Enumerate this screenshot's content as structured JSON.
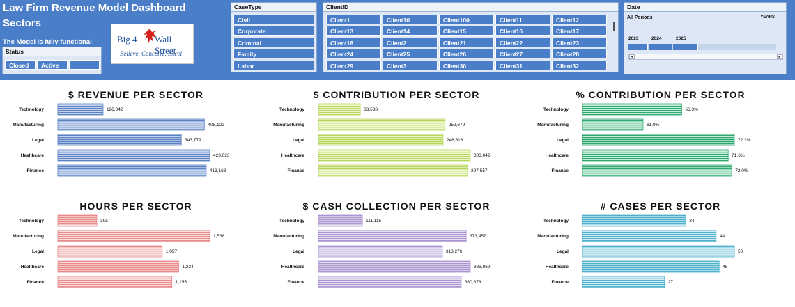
{
  "header": {
    "title_line1": "Law Firm Revenue Model Dashboard",
    "title_line2": "Sectors",
    "functional_note": "The Model is fully functional",
    "background": "#4a7ec8"
  },
  "logo": {
    "left_text": "Big 4",
    "right_text": "Wall Street",
    "tagline": "Believe, Conceive, Excel"
  },
  "status_slicer": {
    "title": "Status",
    "items": [
      "Closed",
      "Active",
      ""
    ]
  },
  "casetype_slicer": {
    "title": "CaseType",
    "items": [
      "Civil",
      "Corporate",
      "Criminal",
      "Family",
      "Labor"
    ]
  },
  "client_slicer": {
    "title": "ClientID",
    "rows": [
      [
        "Client1",
        "Client10",
        "Client100",
        "Client11",
        "Client12"
      ],
      [
        "Client13",
        "Client14",
        "Client15",
        "Client16",
        "Client17"
      ],
      [
        "Client18",
        "Client2",
        "Client21",
        "Client22",
        "Client23"
      ],
      [
        "Client24",
        "Client25",
        "Client26",
        "Client27",
        "Client28"
      ],
      [
        "Client29",
        "Client3",
        "Client30",
        "Client31",
        "Client32"
      ]
    ]
  },
  "date_slicer": {
    "title": "Date",
    "all_periods": "All Periods",
    "unit": "YEARS",
    "years": [
      "2023",
      "2024",
      "2025"
    ]
  },
  "charts": [
    {
      "title": "$ REVENUE PER SECTOR",
      "chart_data": {
        "type": "bar",
        "orientation": "horizontal",
        "categories": [
          "Technology",
          "Manufacturing",
          "Legal",
          "Healthcare",
          "Finance"
        ],
        "values": [
          126042,
          408122,
          343779,
          423023,
          413168
        ],
        "labels": [
          "126,042",
          "408,122",
          "343,779",
          "423,023",
          "413,168"
        ],
        "xlim": [
          0,
          423023
        ]
      },
      "color": "#5b82c2",
      "fill": "#c7d6ee"
    },
    {
      "title": "$ CONTRIBUTION PER SECTOR",
      "chart_data": {
        "type": "bar",
        "orientation": "horizontal",
        "categories": [
          "Technology",
          "Manufacturing",
          "Legal",
          "Healthcare",
          "Finance"
        ],
        "values": [
          83538,
          252679,
          248618,
          303042,
          297557
        ],
        "labels": [
          "83,538",
          "252,679",
          "248,618",
          "303,042",
          "297,557"
        ],
        "xlim": [
          0,
          303042
        ]
      },
      "color": "#b5d65a",
      "fill": "#eef7cf"
    },
    {
      "title": "% CONTRIBUTION PER SECTOR",
      "chart_data": {
        "type": "bar",
        "orientation": "horizontal",
        "categories": [
          "Technology",
          "Manufacturing",
          "Legal",
          "Healthcare",
          "Finance"
        ],
        "values": [
          66.3,
          61.9,
          72.3,
          71.6,
          72.0
        ],
        "labels": [
          "66.3%",
          "61.9%",
          "72.3%",
          "71.6%",
          "72.0%"
        ],
        "xlim": [
          55,
          72.3
        ]
      },
      "color": "#2fa972",
      "fill": "#c9ecd9"
    },
    {
      "title": "HOURS PER SECTOR",
      "chart_data": {
        "type": "bar",
        "orientation": "horizontal",
        "categories": [
          "Technology",
          "Manufacturing",
          "Legal",
          "Healthcare",
          "Finance"
        ],
        "values": [
          395,
          1538,
          1057,
          1224,
          1155
        ],
        "labels": [
          "395",
          "1,538",
          "1,057",
          "1,224",
          "1,155"
        ],
        "xlim": [
          0,
          1538
        ]
      },
      "color": "#e8898a",
      "fill": "#fbe0e0"
    },
    {
      "title": "$ CASH COLLECTION PER SECTOR",
      "chart_data": {
        "type": "bar",
        "orientation": "horizontal",
        "categories": [
          "Technology",
          "Manufacturing",
          "Legal",
          "Healthcare",
          "Finance"
        ],
        "values": [
          111115,
          373457,
          313276,
          383869,
          360873
        ],
        "labels": [
          "111,115",
          "373,457",
          "313,276",
          "383,869",
          "360,873"
        ],
        "xlim": [
          0,
          383869
        ]
      },
      "color": "#a995cf",
      "fill": "#e7e0f3"
    },
    {
      "title": "# CASES PER SECTOR",
      "chart_data": {
        "type": "bar",
        "orientation": "horizontal",
        "categories": [
          "Technology",
          "Manufacturing",
          "Legal",
          "Healthcare",
          "Finance"
        ],
        "values": [
          34,
          44,
          50,
          45,
          27
        ],
        "labels": [
          "34",
          "44",
          "50",
          "45",
          "27"
        ],
        "xlim": [
          0,
          50
        ]
      },
      "color": "#4fb1cc",
      "fill": "#d3ecf4"
    }
  ]
}
